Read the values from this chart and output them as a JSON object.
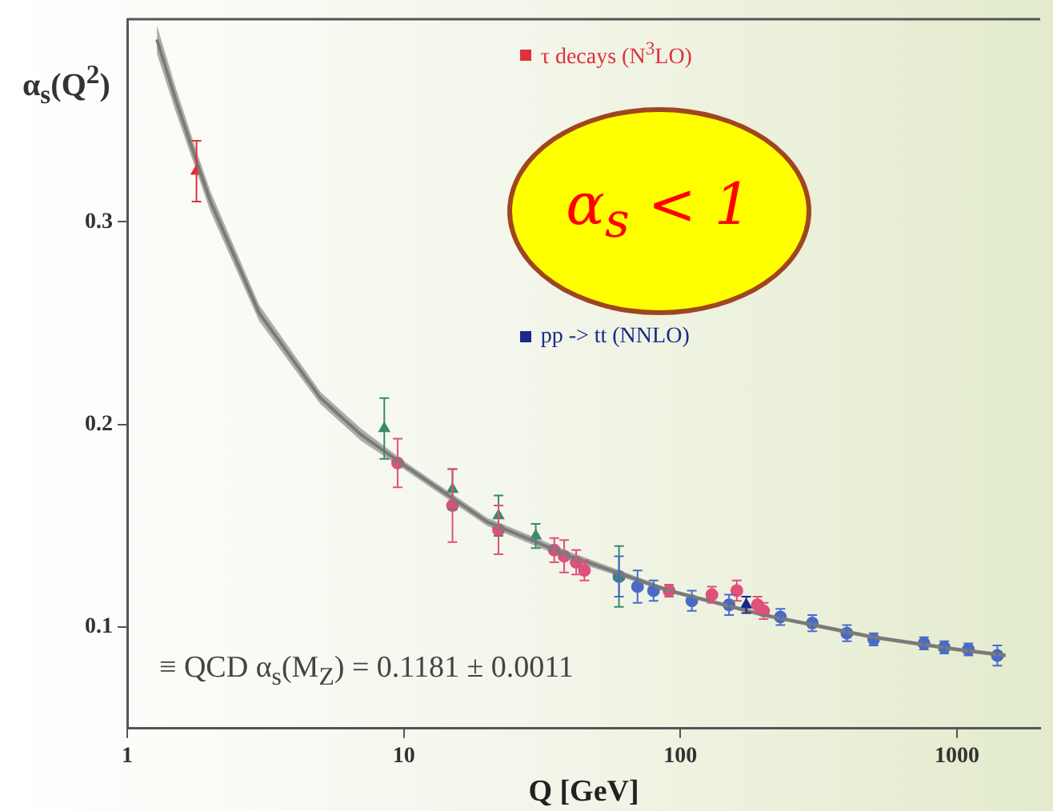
{
  "chart_data": {
    "type": "scatter",
    "ylabel": "α$_{s}$(Q$^{2}$)",
    "xlabel": "Q [GeV]",
    "annotations": [
      "α$_{s}$ < 1",
      "≡ QCD α$_{s}$(M$_{Z}$) = 0.1181 ± 0.0011"
    ],
    "log": "x",
    "xlim": [
      1,
      2000
    ],
    "ylim": [
      0.05,
      0.4
    ],
    "xticks": [
      1,
      10,
      100,
      1000
    ],
    "yticks": [
      0.1,
      0.2,
      0.3
    ],
    "grid": false,
    "legend": "top right",
    "series": [
      {
        "type": "line",
        "color": "#7a7a7a",
        "marker": "none",
        "x": [
          1.28,
          1.5,
          1.78,
          2,
          3,
          5,
          7,
          10,
          20,
          40,
          91,
          200,
          500,
          1000,
          1500
        ],
        "values": [
          0.39,
          0.36,
          0.33,
          0.31,
          0.255,
          0.213,
          0.195,
          0.18,
          0.152,
          0.135,
          0.118,
          0.106,
          0.095,
          0.089,
          0.086
        ],
        "lower": [
          0.383,
          0.354,
          0.325,
          0.305,
          0.251,
          0.21,
          0.192,
          0.178,
          0.15,
          0.133,
          0.117,
          0.105,
          0.094,
          0.088,
          0.085
        ],
        "upper": [
          0.397,
          0.366,
          0.335,
          0.315,
          0.259,
          0.216,
          0.198,
          0.182,
          0.154,
          0.137,
          0.119,
          0.107,
          0.096,
          0.09,
          0.087
        ]
      },
      {
        "name": "τ decays (N$^{3}$LO)",
        "color": "#e0303c",
        "marker": "triangle",
        "x": [
          1.78
        ],
        "values": [
          0.325
        ],
        "errors": [
          0.015
        ]
      },
      {
        "color": "#3a8a6a",
        "marker": "triangle",
        "x": [
          8.5,
          15,
          22,
          30,
          60
        ],
        "values": [
          0.198,
          0.168,
          0.155,
          0.145,
          0.125
        ],
        "errors": [
          0.015,
          0.01,
          0.01,
          0.006,
          0.015
        ]
      },
      {
        "color": "#e0507a",
        "marker": "circle",
        "x": [
          9.5,
          15,
          22,
          35,
          38,
          42,
          45,
          91,
          130,
          160,
          190,
          200
        ],
        "values": [
          0.181,
          0.16,
          0.148,
          0.138,
          0.135,
          0.132,
          0.128,
          0.118,
          0.116,
          0.118,
          0.111,
          0.108
        ],
        "errors": [
          0.012,
          0.018,
          0.012,
          0.006,
          0.008,
          0.006,
          0.005,
          0.003,
          0.004,
          0.005,
          0.004,
          0.004
        ]
      },
      {
        "color": "#4a6ac8",
        "marker": "circle",
        "x": [
          60,
          70,
          80,
          110,
          150,
          230,
          300,
          400,
          500,
          760,
          900,
          1100,
          1400
        ],
        "values": [
          0.125,
          0.12,
          0.118,
          0.113,
          0.111,
          0.105,
          0.102,
          0.097,
          0.094,
          0.092,
          0.09,
          0.089,
          0.086
        ],
        "errors": [
          0.01,
          0.008,
          0.005,
          0.005,
          0.005,
          0.004,
          0.004,
          0.004,
          0.003,
          0.003,
          0.003,
          0.003,
          0.005
        ]
      },
      {
        "name": "pp -> tt (NNLO)",
        "color": "#1a2a8a",
        "marker": "triangle",
        "x": [
          173
        ],
        "values": [
          0.111
        ],
        "errors": [
          0.004
        ]
      }
    ]
  }
}
